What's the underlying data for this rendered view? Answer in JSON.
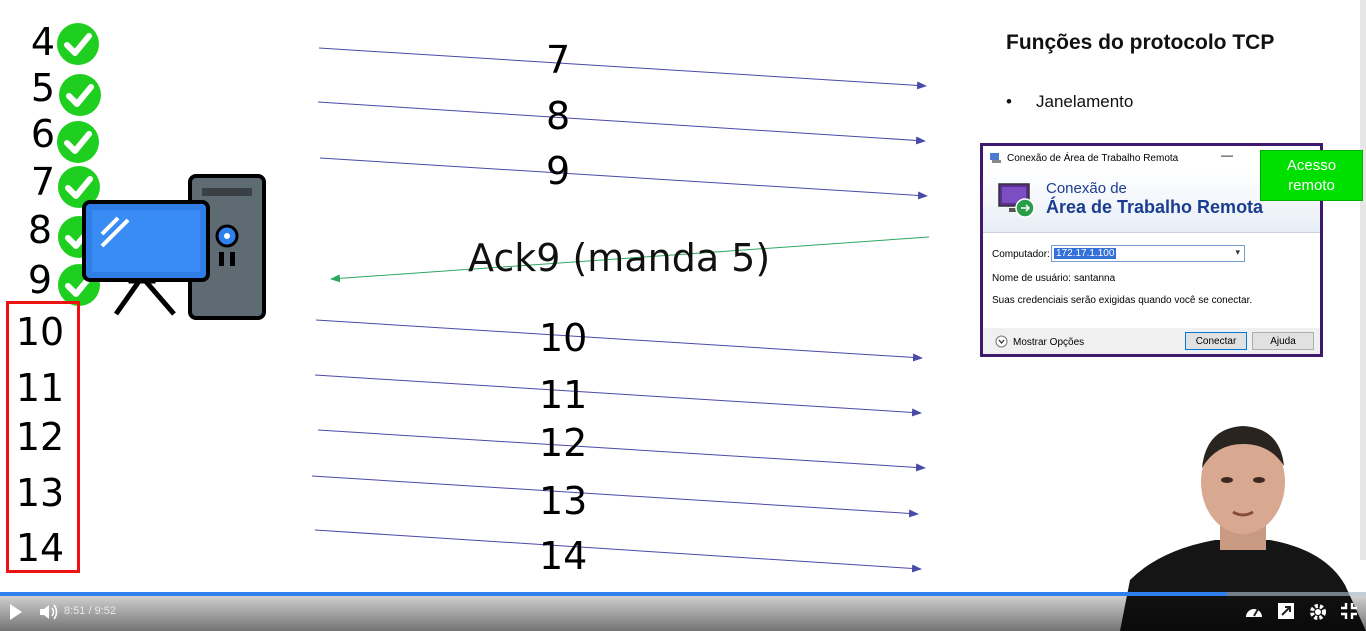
{
  "left_window": {
    "acked": [
      "4",
      "5",
      "6",
      "7",
      "8",
      "9"
    ],
    "pending": [
      "10",
      "11",
      "12",
      "13",
      "14"
    ]
  },
  "segments": {
    "top": [
      "7",
      "8",
      "9"
    ],
    "ack_label": "Ack9 (manda 5)",
    "bottom": [
      "10",
      "11",
      "12",
      "13",
      "14"
    ]
  },
  "slide": {
    "title": "Funções do protocolo TCP",
    "bullet_char": "•",
    "bullet": "Janelamento"
  },
  "rdp": {
    "window_title": "Conexão de Área de Trabalho Remota",
    "minimize": "—",
    "header_line1": "Conexão de",
    "header_line2": "Área de Trabalho Remota",
    "computer_label": "Computador:",
    "computer_value": "172.17.1.100",
    "user_label": "Nome de usuário:",
    "user_value": "santanna",
    "note": "Suas credenciais serão exigidas quando você se conectar.",
    "options_label": "Mostrar Opções",
    "connect_button": "Conectar",
    "help_button": "Ajuda"
  },
  "callout": {
    "line1": "Acesso",
    "line2": "remoto"
  },
  "player": {
    "time": "8:51 / 9:52",
    "progress": 0.898,
    "accent": "#2f80ed"
  },
  "colors": {
    "check": "#1fcf1f",
    "box": "#e11111",
    "arrow_send": "#4a4aa8",
    "arrow_ack": "#2aa860",
    "callout": "#00e000"
  }
}
